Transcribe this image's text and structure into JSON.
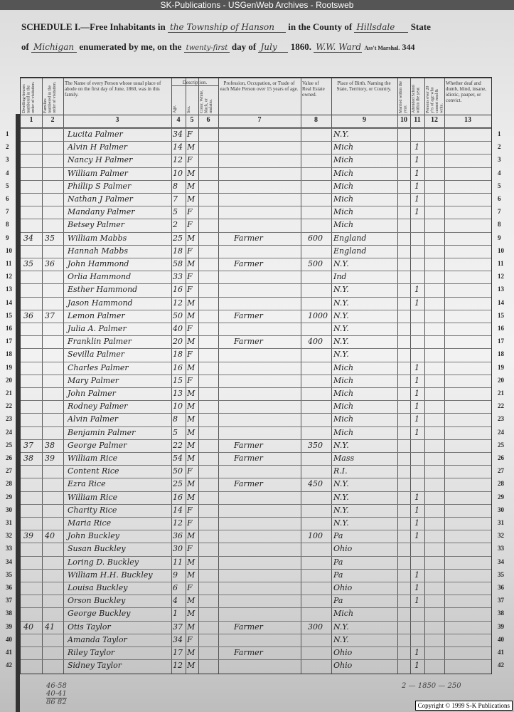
{
  "watermark": "SK-Publications - USGenWeb Archives - Rootsweb",
  "heading": {
    "schedule": "SCHEDULE I.—Free Inhabitants in",
    "place": "the Township of Hanson",
    "county_label": "in the County of",
    "county": "Hillsdale",
    "state_label": "State",
    "of_label": "of",
    "state": "Michigan",
    "enumerated": "enumerated by me, on the",
    "day": "twenty-first",
    "day_of": "day of",
    "month": "July",
    "year": "1860.",
    "marshal": "W.W. Ward",
    "marshal_label": "Ass't Marshal.",
    "page_number": "344"
  },
  "columns": [
    {
      "num": "1",
      "label": "Dwelling-houses numbered in the order of visitation."
    },
    {
      "num": "2",
      "label": "Families numbered in the order of visitation."
    },
    {
      "num": "3",
      "label": "The Name of every Person whose usual place of abode on the first day of June, 1860, was in this family."
    },
    {
      "num": "4",
      "label": "Age."
    },
    {
      "num": "5",
      "label": "Sex."
    },
    {
      "num": "6",
      "label": "Color, White, black, or mulatto."
    },
    {
      "num": "7",
      "label": "Profession, Occupation, or Trade of each Male Person over 15 years of age."
    },
    {
      "num": "8",
      "label": "Value of Real Estate owned."
    },
    {
      "num": "9",
      "label": "Place of Birth. Naming the State, Territory, or Country."
    },
    {
      "num": "10",
      "label": "Married within the year."
    },
    {
      "num": "11",
      "label": "Attended School within the year."
    },
    {
      "num": "12",
      "label": "Persons over 20 y'rs of age who cannot read & write."
    },
    {
      "num": "13",
      "label": "Whether deaf and dumb, blind, insane, idiotic, pauper, or convict."
    }
  ],
  "description_label": "Description.",
  "rows": [
    {
      "n": "1",
      "d": "",
      "f": "",
      "name": "Lucita Palmer",
      "age": "34",
      "sex": "F",
      "occ": "",
      "val": "",
      "birth": "N.Y.",
      "school": ""
    },
    {
      "n": "2",
      "d": "",
      "f": "",
      "name": "Alvin H Palmer",
      "age": "14",
      "sex": "M",
      "occ": "",
      "val": "",
      "birth": "Mich",
      "school": "1"
    },
    {
      "n": "3",
      "d": "",
      "f": "",
      "name": "Nancy H Palmer",
      "age": "12",
      "sex": "F",
      "occ": "",
      "val": "",
      "birth": "Mich",
      "school": "1"
    },
    {
      "n": "4",
      "d": "",
      "f": "",
      "name": "William Palmer",
      "age": "10",
      "sex": "M",
      "occ": "",
      "val": "",
      "birth": "Mich",
      "school": "1"
    },
    {
      "n": "5",
      "d": "",
      "f": "",
      "name": "Phillip S Palmer",
      "age": "8",
      "sex": "M",
      "occ": "",
      "val": "",
      "birth": "Mich",
      "school": "1"
    },
    {
      "n": "6",
      "d": "",
      "f": "",
      "name": "Nathan J Palmer",
      "age": "7",
      "sex": "M",
      "occ": "",
      "val": "",
      "birth": "Mich",
      "school": "1"
    },
    {
      "n": "7",
      "d": "",
      "f": "",
      "name": "Mandany Palmer",
      "age": "5",
      "sex": "F",
      "occ": "",
      "val": "",
      "birth": "Mich",
      "school": "1"
    },
    {
      "n": "8",
      "d": "",
      "f": "",
      "name": "Betsey Palmer",
      "age": "2",
      "sex": "F",
      "occ": "",
      "val": "",
      "birth": "Mich",
      "school": ""
    },
    {
      "n": "9",
      "d": "34",
      "f": "35",
      "name": "William Mabbs",
      "age": "25",
      "sex": "M",
      "occ": "Farmer",
      "val": "600",
      "birth": "England",
      "school": ""
    },
    {
      "n": "10",
      "d": "",
      "f": "",
      "name": "Hannah Mabbs",
      "age": "18",
      "sex": "F",
      "occ": "",
      "val": "",
      "birth": "England",
      "school": ""
    },
    {
      "n": "11",
      "d": "35",
      "f": "36",
      "name": "John Hammond",
      "age": "58",
      "sex": "M",
      "occ": "Farmer",
      "val": "500",
      "birth": "N.Y.",
      "school": ""
    },
    {
      "n": "12",
      "d": "",
      "f": "",
      "name": "Orlia Hammond",
      "age": "33",
      "sex": "F",
      "occ": "",
      "val": "",
      "birth": "Ind",
      "school": ""
    },
    {
      "n": "13",
      "d": "",
      "f": "",
      "name": "Esther Hammond",
      "age": "16",
      "sex": "F",
      "occ": "",
      "val": "",
      "birth": "N.Y.",
      "school": "1"
    },
    {
      "n": "14",
      "d": "",
      "f": "",
      "name": "Jason Hammond",
      "age": "12",
      "sex": "M",
      "occ": "",
      "val": "",
      "birth": "N.Y.",
      "school": "1"
    },
    {
      "n": "15",
      "d": "36",
      "f": "37",
      "name": "Lemon Palmer",
      "age": "50",
      "sex": "M",
      "occ": "Farmer",
      "val": "1000",
      "birth": "N.Y.",
      "school": ""
    },
    {
      "n": "16",
      "d": "",
      "f": "",
      "name": "Julia A. Palmer",
      "age": "40",
      "sex": "F",
      "occ": "",
      "val": "",
      "birth": "N.Y.",
      "school": ""
    },
    {
      "n": "17",
      "d": "",
      "f": "",
      "name": "Franklin Palmer",
      "age": "20",
      "sex": "M",
      "occ": "Farmer",
      "val": "400",
      "birth": "N.Y.",
      "school": ""
    },
    {
      "n": "18",
      "d": "",
      "f": "",
      "name": "Sevilla Palmer",
      "age": "18",
      "sex": "F",
      "occ": "",
      "val": "",
      "birth": "N.Y.",
      "school": ""
    },
    {
      "n": "19",
      "d": "",
      "f": "",
      "name": "Charles Palmer",
      "age": "16",
      "sex": "M",
      "occ": "",
      "val": "",
      "birth": "Mich",
      "school": "1"
    },
    {
      "n": "20",
      "d": "",
      "f": "",
      "name": "Mary Palmer",
      "age": "15",
      "sex": "F",
      "occ": "",
      "val": "",
      "birth": "Mich",
      "school": "1"
    },
    {
      "n": "21",
      "d": "",
      "f": "",
      "name": "John Palmer",
      "age": "13",
      "sex": "M",
      "occ": "",
      "val": "",
      "birth": "Mich",
      "school": "1"
    },
    {
      "n": "22",
      "d": "",
      "f": "",
      "name": "Rodney Palmer",
      "age": "10",
      "sex": "M",
      "occ": "",
      "val": "",
      "birth": "Mich",
      "school": "1"
    },
    {
      "n": "23",
      "d": "",
      "f": "",
      "name": "Alvin Palmer",
      "age": "8",
      "sex": "M",
      "occ": "",
      "val": "",
      "birth": "Mich",
      "school": "1"
    },
    {
      "n": "24",
      "d": "",
      "f": "",
      "name": "Benjamin Palmer",
      "age": "5",
      "sex": "M",
      "occ": "",
      "val": "",
      "birth": "Mich",
      "school": "1"
    },
    {
      "n": "25",
      "d": "37",
      "f": "38",
      "name": "George Palmer",
      "age": "22",
      "sex": "M",
      "occ": "Farmer",
      "val": "350",
      "birth": "N.Y.",
      "school": ""
    },
    {
      "n": "26",
      "d": "38",
      "f": "39",
      "name": "William Rice",
      "age": "54",
      "sex": "M",
      "occ": "Farmer",
      "val": "",
      "birth": "Mass",
      "school": ""
    },
    {
      "n": "27",
      "d": "",
      "f": "",
      "name": "Content Rice",
      "age": "50",
      "sex": "F",
      "occ": "",
      "val": "",
      "birth": "R.I.",
      "school": ""
    },
    {
      "n": "28",
      "d": "",
      "f": "",
      "name": "Ezra Rice",
      "age": "25",
      "sex": "M",
      "occ": "Farmer",
      "val": "450",
      "birth": "N.Y.",
      "school": ""
    },
    {
      "n": "29",
      "d": "",
      "f": "",
      "name": "William Rice",
      "age": "16",
      "sex": "M",
      "occ": "",
      "val": "",
      "birth": "N.Y.",
      "school": "1"
    },
    {
      "n": "30",
      "d": "",
      "f": "",
      "name": "Charity Rice",
      "age": "14",
      "sex": "F",
      "occ": "",
      "val": "",
      "birth": "N.Y.",
      "school": "1"
    },
    {
      "n": "31",
      "d": "",
      "f": "",
      "name": "Maria Rice",
      "age": "12",
      "sex": "F",
      "occ": "",
      "val": "",
      "birth": "N.Y.",
      "school": "1"
    },
    {
      "n": "32",
      "d": "39",
      "f": "40",
      "name": "John Buckley",
      "age": "36",
      "sex": "M",
      "occ": "",
      "val": "100",
      "birth": "Pa",
      "school": "1"
    },
    {
      "n": "33",
      "d": "",
      "f": "",
      "name": "Susan Buckley",
      "age": "30",
      "sex": "F",
      "occ": "",
      "val": "",
      "birth": "Ohio",
      "school": ""
    },
    {
      "n": "34",
      "d": "",
      "f": "",
      "name": "Loring D. Buckley",
      "age": "11",
      "sex": "M",
      "occ": "",
      "val": "",
      "birth": "Pa",
      "school": ""
    },
    {
      "n": "35",
      "d": "",
      "f": "",
      "name": "William H.H. Buckley",
      "age": "9",
      "sex": "M",
      "occ": "",
      "val": "",
      "birth": "Pa",
      "school": "1"
    },
    {
      "n": "36",
      "d": "",
      "f": "",
      "name": "Louisa Buckley",
      "age": "6",
      "sex": "F",
      "occ": "",
      "val": "",
      "birth": "Ohio",
      "school": "1"
    },
    {
      "n": "37",
      "d": "",
      "f": "",
      "name": "Orson Buckley",
      "age": "4",
      "sex": "M",
      "occ": "",
      "val": "",
      "birth": "Pa",
      "school": "1"
    },
    {
      "n": "38",
      "d": "",
      "f": "",
      "name": "George Buckley",
      "age": "1",
      "sex": "M",
      "occ": "",
      "val": "",
      "birth": "Mich",
      "school": ""
    },
    {
      "n": "39",
      "d": "40",
      "f": "41",
      "name": "Otis Taylor",
      "age": "37",
      "sex": "M",
      "occ": "Farmer",
      "val": "300",
      "birth": "N.Y.",
      "school": ""
    },
    {
      "n": "40",
      "d": "",
      "f": "",
      "name": "Amanda Taylor",
      "age": "34",
      "sex": "F",
      "occ": "",
      "val": "",
      "birth": "N.Y.",
      "school": ""
    },
    {
      "n": "41",
      "d": "",
      "f": "",
      "name": "Riley Taylor",
      "age": "17",
      "sex": "M",
      "occ": "Farmer",
      "val": "",
      "birth": "Ohio",
      "school": "1"
    },
    {
      "n": "42",
      "d": "",
      "f": "",
      "name": "Sidney Taylor",
      "age": "12",
      "sex": "M",
      "occ": "",
      "val": "",
      "birth": "Ohio",
      "school": "1"
    }
  ],
  "tallies": {
    "left": [
      "46-58",
      "40-41",
      "86 82"
    ],
    "right": "2 — 1850 — 250"
  },
  "copyright": "Copyright © 1999 S-K Publications"
}
